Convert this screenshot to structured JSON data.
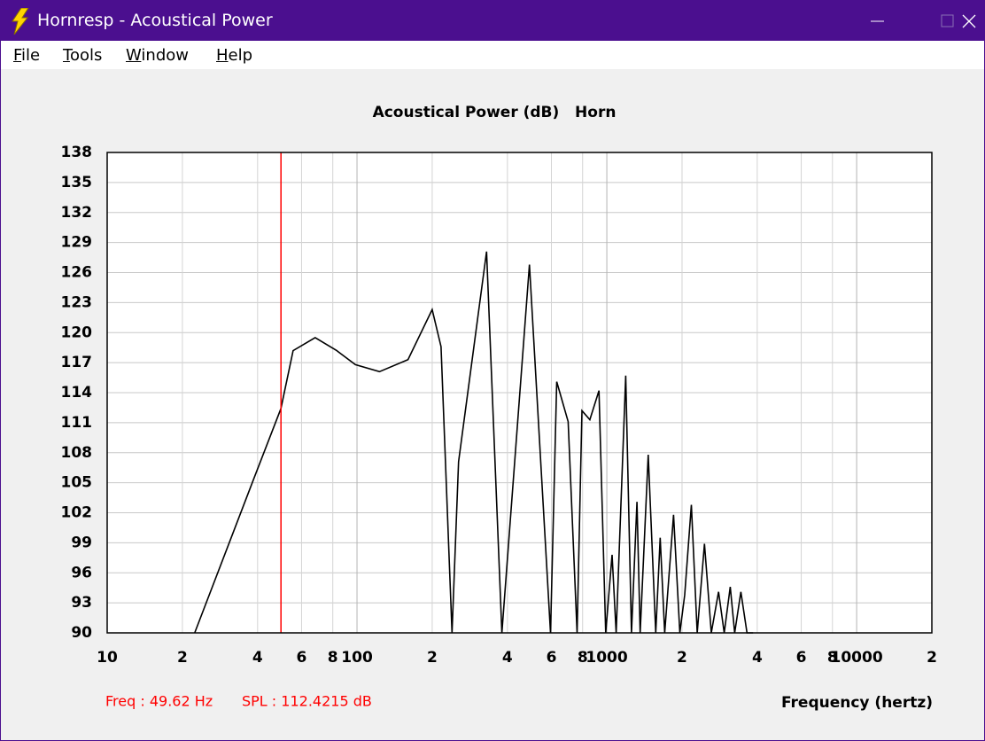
{
  "window": {
    "title": "Hornresp - Acoustical Power",
    "menu": [
      "File",
      "Tools",
      "Window",
      "Help"
    ]
  },
  "chart_data": {
    "type": "line",
    "title": "Acoustical Power (dB)   Horn",
    "x_label": "Frequency (hertz)",
    "xscale": "log",
    "color": "#000000",
    "grid": true,
    "x": [
      22.4,
      38.5,
      49.6,
      55.5,
      68,
      83,
      98.5,
      123,
      160,
      200,
      217,
      240,
      255,
      330,
      380,
      490,
      595,
      630,
      700,
      760,
      795,
      855,
      930,
      990,
      1050,
      1090,
      1190,
      1255,
      1320,
      1360,
      1465,
      1570,
      1635,
      1705,
      1850,
      1960,
      2050,
      2180,
      2300,
      2460,
      2620,
      2800,
      2950,
      3120,
      3250,
      3440,
      3640,
      3850
    ],
    "values": [
      90,
      105.3,
      112.4,
      118.2,
      119.5,
      118.2,
      116.8,
      116.1,
      117.3,
      122.3,
      118.6,
      90,
      107.1,
      128.1,
      90,
      126.8,
      90,
      115.1,
      111.1,
      90,
      112.2,
      111.3,
      114.2,
      90,
      97.8,
      90,
      115.7,
      90,
      103.1,
      90,
      107.8,
      90,
      99.5,
      90,
      101.8,
      90,
      93.8,
      102.8,
      90,
      98.9,
      90,
      94.1,
      90,
      94.6,
      90,
      94.1,
      90,
      90
    ],
    "xlim": [
      10,
      20000
    ],
    "ylim": [
      90,
      138
    ],
    "xticks": [
      10,
      {
        "value": 20,
        "label": "2"
      },
      {
        "value": 40,
        "label": "4"
      },
      {
        "value": 60,
        "label": "6"
      },
      {
        "value": 80,
        "label": "8"
      },
      100,
      {
        "value": 200,
        "label": "2"
      },
      {
        "value": 400,
        "label": "4"
      },
      {
        "value": 600,
        "label": "6"
      },
      {
        "value": 800,
        "label": "8"
      },
      1000,
      {
        "value": 2000,
        "label": "2"
      },
      {
        "value": 4000,
        "label": "4"
      },
      {
        "value": 6000,
        "label": "6"
      },
      {
        "value": 8000,
        "label": "8"
      },
      10000,
      {
        "value": 20000,
        "label": "2"
      }
    ],
    "yticks": [
      90,
      93,
      96,
      99,
      102,
      105,
      108,
      111,
      114,
      117,
      120,
      123,
      126,
      129,
      132,
      135,
      138
    ],
    "cursor": {
      "x": 49.62,
      "y": 112.4215,
      "color": "#ff0000",
      "freq_label": "Freq : 49.62 Hz",
      "spl_label": "SPL : 112.4215 dB"
    }
  }
}
